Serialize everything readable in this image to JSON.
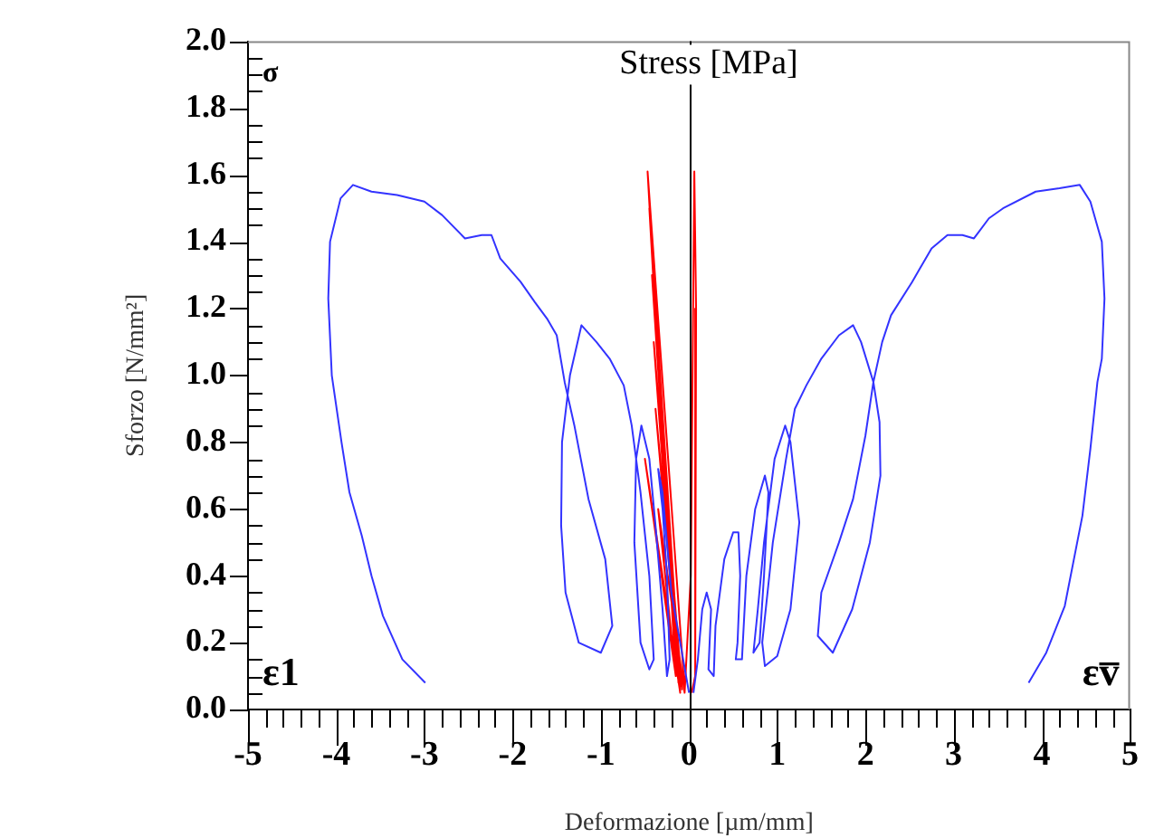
{
  "chart_data": {
    "type": "line",
    "xlabel": "Deformazione [µm/mm]",
    "ylabel": "Sforzo [N/mm²]",
    "legend": false,
    "grid": false,
    "marker": "none",
    "line_style": "solid",
    "xlim": [
      -5,
      5
    ],
    "ylim": [
      0,
      2
    ],
    "xticks": [
      -5,
      {
        "value": -4.8,
        "label": null
      },
      {
        "value": -4.6,
        "label": null
      },
      {
        "value": -4.4,
        "label": null
      },
      {
        "value": -4.2,
        "label": null
      },
      -4,
      {
        "value": -3.8,
        "label": null
      },
      {
        "value": -3.6,
        "label": null
      },
      {
        "value": -3.4,
        "label": null
      },
      {
        "value": -3.2,
        "label": null
      },
      -3,
      {
        "value": -2.8,
        "label": null
      },
      {
        "value": -2.6,
        "label": null
      },
      {
        "value": -2.4,
        "label": null
      },
      {
        "value": -2.2,
        "label": null
      },
      -2,
      {
        "value": -1.8,
        "label": null
      },
      {
        "value": -1.6,
        "label": null
      },
      {
        "value": -1.4,
        "label": null
      },
      {
        "value": -1.2,
        "label": null
      },
      -1,
      {
        "value": -0.8,
        "label": null
      },
      {
        "value": -0.6,
        "label": null
      },
      {
        "value": -0.4,
        "label": null
      },
      {
        "value": -0.2,
        "label": null
      },
      0,
      {
        "value": 0.2,
        "label": null
      },
      {
        "value": 0.4,
        "label": null
      },
      {
        "value": 0.6,
        "label": null
      },
      {
        "value": 0.8,
        "label": null
      },
      1,
      {
        "value": 1.2,
        "label": null
      },
      {
        "value": 1.4,
        "label": null
      },
      {
        "value": 1.6,
        "label": null
      },
      {
        "value": 1.8,
        "label": null
      },
      2,
      {
        "value": 2.2,
        "label": null
      },
      {
        "value": 2.4,
        "label": null
      },
      {
        "value": 2.6,
        "label": null
      },
      {
        "value": 2.8,
        "label": null
      },
      3,
      {
        "value": 3.2,
        "label": null
      },
      {
        "value": 3.4,
        "label": null
      },
      {
        "value": 3.6,
        "label": null
      },
      {
        "value": 3.8,
        "label": null
      },
      4,
      {
        "value": 4.2,
        "label": null
      },
      {
        "value": 4.4,
        "label": null
      },
      {
        "value": 4.6,
        "label": null
      },
      {
        "value": 4.8,
        "label": null
      },
      5
    ],
    "yticks": [
      {
        "value": 0,
        "label": "0.0"
      },
      {
        "value": 0.05,
        "label": null
      },
      {
        "value": 0.1,
        "label": null
      },
      {
        "value": 0.15,
        "label": null
      },
      {
        "value": 0.2,
        "label": "0.2"
      },
      {
        "value": 0.25,
        "label": null
      },
      {
        "value": 0.3,
        "label": null
      },
      {
        "value": 0.35,
        "label": null
      },
      {
        "value": 0.4,
        "label": "0.4"
      },
      {
        "value": 0.45,
        "label": null
      },
      {
        "value": 0.5,
        "label": null
      },
      {
        "value": 0.55,
        "label": null
      },
      {
        "value": 0.6,
        "label": "0.6"
      },
      {
        "value": 0.65,
        "label": null
      },
      {
        "value": 0.7,
        "label": null
      },
      {
        "value": 0.75,
        "label": null
      },
      {
        "value": 0.8,
        "label": "0.8"
      },
      {
        "value": 0.85,
        "label": null
      },
      {
        "value": 0.9,
        "label": null
      },
      {
        "value": 0.95,
        "label": null
      },
      {
        "value": 1,
        "label": "1.0"
      },
      {
        "value": 1.05,
        "label": null
      },
      {
        "value": 1.1,
        "label": null
      },
      {
        "value": 1.15,
        "label": null
      },
      {
        "value": 1.2,
        "label": "1.2"
      },
      {
        "value": 1.25,
        "label": null
      },
      {
        "value": 1.3,
        "label": null
      },
      {
        "value": 1.35,
        "label": null
      },
      {
        "value": 1.4,
        "label": "1.4"
      },
      {
        "value": 1.45,
        "label": null
      },
      {
        "value": 1.5,
        "label": null
      },
      {
        "value": 1.55,
        "label": null
      },
      {
        "value": 1.6,
        "label": "1.6"
      },
      {
        "value": 1.65,
        "label": null
      },
      {
        "value": 1.7,
        "label": null
      },
      {
        "value": 1.75,
        "label": null
      },
      {
        "value": 1.8,
        "label": "1.8"
      },
      {
        "value": 1.85,
        "label": null
      },
      {
        "value": 1.9,
        "label": null
      },
      {
        "value": 1.95,
        "label": null
      },
      {
        "value": 2,
        "label": "2.0"
      }
    ],
    "ref_lines": [
      {
        "axis": "x",
        "value": 0,
        "label": "Stress [MPa]",
        "color": "#000000"
      }
    ],
    "annotations": [
      "σ",
      "ε1",
      "εv̅"
    ],
    "series": [
      {
        "color": "#3333ff",
        "x": [
          0,
          -0.1,
          -0.2,
          -0.25,
          -0.3,
          -0.35,
          -0.3,
          -0.25,
          -0.22,
          -0.25,
          -0.3,
          -0.38,
          -0.45,
          -0.54,
          -0.6,
          -0.62,
          -0.55,
          -0.45,
          -0.4,
          -0.45,
          -0.55,
          -0.65,
          -0.74,
          -0.9,
          -1.05,
          -1.22,
          -1.35,
          -1.44,
          -1.45,
          -1.4,
          -1.25,
          -1.0,
          -0.87,
          -0.95,
          -1.14,
          -1.3,
          -1.41,
          -1.5,
          -1.61,
          -1.75,
          -1.91,
          -2.14,
          -2.24,
          -2.35,
          -2.54,
          -2.8,
          -3.0,
          -3.31,
          -3.6,
          -3.81,
          -3.95,
          -4.07,
          -4.09,
          -4.05,
          -3.94,
          -3.85,
          -3.71,
          -3.6,
          -3.47,
          -3.25,
          -2.99
        ],
        "values": [
          0.05,
          0.2,
          0.35,
          0.5,
          0.65,
          0.72,
          0.6,
          0.4,
          0.15,
          0.1,
          0.3,
          0.55,
          0.75,
          0.85,
          0.75,
          0.5,
          0.2,
          0.12,
          0.15,
          0.4,
          0.65,
          0.85,
          0.97,
          1.05,
          1.1,
          1.15,
          1.0,
          0.8,
          0.55,
          0.35,
          0.2,
          0.17,
          0.25,
          0.45,
          0.63,
          0.85,
          0.98,
          1.12,
          1.17,
          1.22,
          1.28,
          1.35,
          1.42,
          1.42,
          1.41,
          1.48,
          1.52,
          1.54,
          1.55,
          1.57,
          1.53,
          1.4,
          1.23,
          1.0,
          0.8,
          0.65,
          0.52,
          0.4,
          0.28,
          0.15,
          0.08
        ]
      },
      {
        "color": "#3333ff",
        "x": [
          0.05,
          0.1,
          0.15,
          0.2,
          0.25,
          0.22,
          0.28,
          0.3,
          0.4,
          0.5,
          0.56,
          0.58,
          0.55,
          0.53,
          0.6,
          0.65,
          0.75,
          0.86,
          0.9,
          0.85,
          0.8,
          0.73,
          0.78,
          0.85,
          0.97,
          1.09,
          1.15,
          1.25,
          1.15,
          1.0,
          0.86,
          0.83,
          0.95,
          1.1,
          1.2,
          1.33,
          1.5,
          1.7,
          1.86,
          1.95,
          2.09,
          2.16,
          2.17,
          2.05,
          1.85,
          1.63,
          1.46,
          1.5,
          1.7,
          1.86,
          2.0,
          2.09,
          2.19,
          2.29,
          2.53,
          2.75,
          2.93,
          3.1,
          3.23,
          3.4,
          3.56,
          3.93,
          4.2,
          4.43,
          4.55,
          4.68,
          4.71,
          4.68,
          4.63,
          4.55,
          4.46,
          4.26,
          4.05,
          3.85
        ],
        "values": [
          0.05,
          0.15,
          0.3,
          0.35,
          0.3,
          0.12,
          0.1,
          0.25,
          0.45,
          0.53,
          0.53,
          0.4,
          0.2,
          0.15,
          0.15,
          0.4,
          0.6,
          0.7,
          0.65,
          0.4,
          0.2,
          0.17,
          0.3,
          0.5,
          0.75,
          0.85,
          0.8,
          0.56,
          0.3,
          0.16,
          0.13,
          0.2,
          0.5,
          0.75,
          0.9,
          0.97,
          1.05,
          1.12,
          1.15,
          1.1,
          0.98,
          0.86,
          0.7,
          0.5,
          0.3,
          0.17,
          0.22,
          0.35,
          0.5,
          0.63,
          0.82,
          0.98,
          1.1,
          1.18,
          1.28,
          1.38,
          1.42,
          1.42,
          1.41,
          1.47,
          1.5,
          1.55,
          1.56,
          1.57,
          1.52,
          1.4,
          1.23,
          1.05,
          0.98,
          0.78,
          0.58,
          0.31,
          0.17,
          0.08
        ]
      },
      {
        "color": "#ff0000",
        "x": [
          -0.05,
          -0.47,
          -0.15,
          -0.45,
          -0.1,
          -0.42,
          -0.12,
          -0.4,
          -0.08,
          -0.38,
          -0.1,
          -0.5,
          -0.15,
          -0.35,
          -0.05,
          0.02,
          0.06,
          0.08,
          0.07,
          0.03
        ],
        "values": [
          0.06,
          1.61,
          0.1,
          1.5,
          0.07,
          1.3,
          0.08,
          1.1,
          0.06,
          0.9,
          0.05,
          0.75,
          0.1,
          0.6,
          0.05,
          0.4,
          1.61,
          1.2,
          0.1,
          0.05
        ]
      }
    ]
  }
}
